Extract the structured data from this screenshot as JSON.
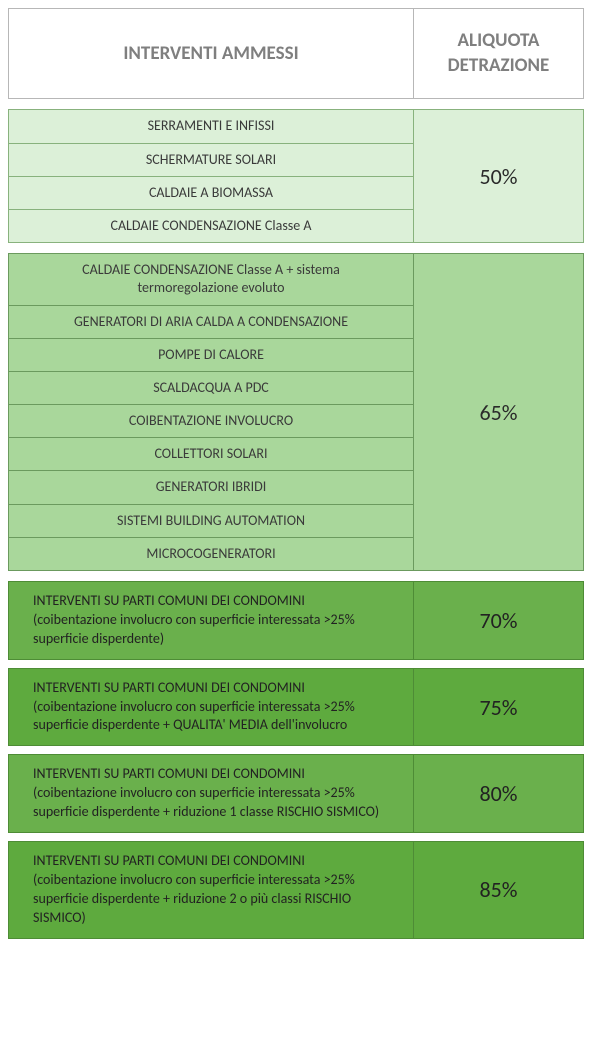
{
  "header": {
    "left": "INTERVENTI AMMESSI",
    "right": "ALIQUOTA DETRAZIONE"
  },
  "group50": {
    "rate": "50%",
    "bg_color": "#dcf0d8",
    "border_color": "#88b27d",
    "items": [
      "SERRAMENTI E INFISSI",
      "SCHERMATURE SOLARI",
      "CALDAIE A BIOMASSA",
      "CALDAIE CONDENSAZIONE Classe A"
    ]
  },
  "group65": {
    "rate": "65%",
    "bg_color": "#a9d79b",
    "border_color": "#6b9a5e",
    "items": [
      "CALDAIE CONDENSAZIONE Classe A + sistema termoregolazione evoluto",
      "GENERATORI DI ARIA CALDA A CONDENSAZIONE",
      "POMPE DI CALORE",
      "SCALDACQUA A PDC",
      "COIBENTAZIONE INVOLUCRO",
      "COLLETTORI SOLARI",
      "GENERATORI IBRIDI",
      "SISTEMI BUILDING AUTOMATION",
      "MICROCOGENERATORI"
    ]
  },
  "darkRows": [
    {
      "text": "INTERVENTI  SU PARTI COMUNI DEI CONDOMINI (coibentazione  involucro con superficie interessata >25% superficie disperdente)",
      "rate": "70%",
      "bg_color": "#6ab04c"
    },
    {
      "text": "INTERVENTI  SU PARTI COMUNI DEI CONDOMINI (coibentazione involucro con superficie interessata >25% superficie disperdente + QUALITA' MEDIA dell'involucro",
      "rate": "75%",
      "bg_color": "#5eaa3e"
    },
    {
      "text": "INTERVENTI  SU PARTI COMUNI DEI CONDOMINI (coibentazione involucro con superficie interessata >25% superficie disperdente + riduzione 1 classe RISCHIO SISMICO)",
      "rate": "80%",
      "bg_color": "#6ab04c"
    },
    {
      "text": "INTERVENTI  SU PARTI COMUNI DEI CONDOMINI (coibentazione involucro con superficie interessata >25% superficie disperdente + riduzione 2 o più classi RISCHIO SISMICO)",
      "rate": "85%",
      "bg_color": "#5eaa3e"
    }
  ],
  "dark_border_color": "#4e8c36"
}
